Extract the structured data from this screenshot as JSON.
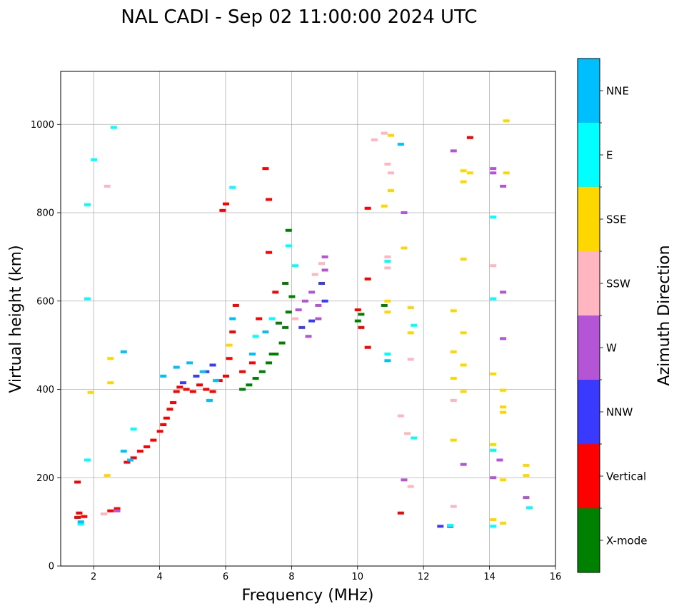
{
  "chart_data": {
    "type": "scatter",
    "title": "NAL CADI - Sep 02 11:00:00 2024 UTC",
    "xlabel": "Frequency (MHz)",
    "ylabel": "Virtual height (km)",
    "xlim": [
      1,
      16
    ],
    "ylim": [
      0,
      1120
    ],
    "xticks": [
      2,
      4,
      6,
      8,
      10,
      12,
      14,
      16
    ],
    "yticks": [
      0,
      200,
      400,
      600,
      800,
      1000
    ],
    "grid": true,
    "colorbar": {
      "label": "Azimuth Direction",
      "categories": [
        {
          "name": "X-mode",
          "color": "#008000"
        },
        {
          "name": "Vertical",
          "color": "#ff0000"
        },
        {
          "name": "NNW",
          "color": "#3a3aff"
        },
        {
          "name": "W",
          "color": "#b455d6"
        },
        {
          "name": "SSW",
          "color": "#ffb6c1"
        },
        {
          "name": "SSE",
          "color": "#ffd700"
        },
        {
          "name": "E",
          "color": "#00ffff"
        },
        {
          "name": "NNE",
          "color": "#00bfff"
        }
      ]
    },
    "series": [
      {
        "name": "Vertical",
        "points": [
          [
            1.5,
            110
          ],
          [
            1.55,
            120
          ],
          [
            1.5,
            190
          ],
          [
            1.7,
            112
          ],
          [
            2.3,
            118
          ],
          [
            2.5,
            125
          ],
          [
            2.7,
            130
          ],
          [
            3.0,
            235
          ],
          [
            3.2,
            245
          ],
          [
            3.4,
            260
          ],
          [
            3.6,
            270
          ],
          [
            3.8,
            285
          ],
          [
            4.0,
            305
          ],
          [
            4.1,
            320
          ],
          [
            4.2,
            335
          ],
          [
            4.3,
            355
          ],
          [
            4.4,
            370
          ],
          [
            4.5,
            395
          ],
          [
            4.6,
            405
          ],
          [
            4.8,
            400
          ],
          [
            5.0,
            395
          ],
          [
            5.2,
            410
          ],
          [
            5.4,
            400
          ],
          [
            5.6,
            395
          ],
          [
            5.8,
            420
          ],
          [
            6.0,
            430
          ],
          [
            6.1,
            470
          ],
          [
            6.2,
            530
          ],
          [
            6.3,
            590
          ],
          [
            6.5,
            440
          ],
          [
            6.8,
            460
          ],
          [
            7.0,
            560
          ],
          [
            7.2,
            900
          ],
          [
            7.3,
            830
          ],
          [
            7.3,
            710
          ],
          [
            7.5,
            620
          ],
          [
            5.9,
            805
          ],
          [
            6.0,
            820
          ],
          [
            10.0,
            580
          ],
          [
            10.1,
            540
          ],
          [
            10.3,
            810
          ],
          [
            10.3,
            650
          ],
          [
            10.3,
            495
          ],
          [
            13.4,
            970
          ],
          [
            11.3,
            120
          ]
        ]
      },
      {
        "name": "X-mode",
        "points": [
          [
            6.5,
            400
          ],
          [
            6.7,
            410
          ],
          [
            6.9,
            425
          ],
          [
            7.1,
            440
          ],
          [
            7.3,
            460
          ],
          [
            7.5,
            480
          ],
          [
            7.7,
            505
          ],
          [
            7.8,
            540
          ],
          [
            7.9,
            575
          ],
          [
            8.0,
            610
          ],
          [
            7.9,
            760
          ],
          [
            7.8,
            640
          ],
          [
            7.6,
            550
          ],
          [
            7.4,
            480
          ],
          [
            10.0,
            555
          ],
          [
            10.1,
            570
          ],
          [
            10.8,
            590
          ]
        ]
      },
      {
        "name": "NNW",
        "points": [
          [
            4.7,
            415
          ],
          [
            5.1,
            430
          ],
          [
            5.4,
            440
          ],
          [
            5.6,
            455
          ],
          [
            8.3,
            540
          ],
          [
            8.6,
            555
          ],
          [
            9.0,
            600
          ],
          [
            8.9,
            640
          ],
          [
            12.5,
            90
          ],
          [
            12.8,
            90
          ]
        ]
      },
      {
        "name": "W",
        "points": [
          [
            2.7,
            125
          ],
          [
            8.2,
            580
          ],
          [
            8.4,
            600
          ],
          [
            8.6,
            620
          ],
          [
            8.8,
            590
          ],
          [
            9.0,
            700
          ],
          [
            9.0,
            670
          ],
          [
            8.8,
            560
          ],
          [
            8.5,
            520
          ],
          [
            11.4,
            800
          ],
          [
            12.9,
            940
          ],
          [
            14.1,
            900
          ],
          [
            14.1,
            890
          ],
          [
            14.4,
            860
          ],
          [
            14.4,
            620
          ],
          [
            14.4,
            515
          ],
          [
            14.3,
            240
          ],
          [
            14.1,
            200
          ],
          [
            15.1,
            155
          ],
          [
            13.2,
            230
          ],
          [
            11.4,
            195
          ]
        ]
      },
      {
        "name": "SSW",
        "points": [
          [
            2.4,
            860
          ],
          [
            2.3,
            118
          ],
          [
            8.1,
            560
          ],
          [
            8.7,
            660
          ],
          [
            8.9,
            685
          ],
          [
            10.9,
            700
          ],
          [
            10.9,
            675
          ],
          [
            11.0,
            890
          ],
          [
            10.9,
            910
          ],
          [
            11.3,
            340
          ],
          [
            11.5,
            300
          ],
          [
            11.6,
            468
          ],
          [
            12.9,
            375
          ],
          [
            12.9,
            135
          ],
          [
            14.1,
            680
          ],
          [
            11.6,
            180
          ],
          [
            10.8,
            980
          ],
          [
            10.5,
            965
          ]
        ]
      },
      {
        "name": "SSE",
        "points": [
          [
            2.5,
            470
          ],
          [
            2.5,
            415
          ],
          [
            2.4,
            205
          ],
          [
            1.9,
            393
          ],
          [
            6.1,
            500
          ],
          [
            10.9,
            600
          ],
          [
            10.9,
            575
          ],
          [
            10.8,
            815
          ],
          [
            11.0,
            975
          ],
          [
            11.0,
            850
          ],
          [
            11.6,
            585
          ],
          [
            11.6,
            528
          ],
          [
            11.4,
            720
          ],
          [
            12.9,
            578
          ],
          [
            12.9,
            485
          ],
          [
            12.9,
            425
          ],
          [
            12.9,
            285
          ],
          [
            13.2,
            895
          ],
          [
            13.2,
            870
          ],
          [
            13.2,
            695
          ],
          [
            13.2,
            528
          ],
          [
            13.2,
            455
          ],
          [
            13.2,
            395
          ],
          [
            13.4,
            890
          ],
          [
            14.1,
            435
          ],
          [
            14.1,
            275
          ],
          [
            14.1,
            105
          ],
          [
            14.4,
            398
          ],
          [
            14.4,
            360
          ],
          [
            14.4,
            348
          ],
          [
            14.4,
            195
          ],
          [
            14.4,
            97
          ],
          [
            14.5,
            1008
          ],
          [
            14.5,
            890
          ],
          [
            15.1,
            228
          ],
          [
            15.1,
            205
          ]
        ]
      },
      {
        "name": "E",
        "points": [
          [
            1.6,
            95
          ],
          [
            1.8,
            818
          ],
          [
            1.8,
            605
          ],
          [
            1.8,
            240
          ],
          [
            2.0,
            920
          ],
          [
            2.6,
            993
          ],
          [
            3.2,
            310
          ],
          [
            6.2,
            857
          ],
          [
            6.9,
            520
          ],
          [
            7.4,
            560
          ],
          [
            7.9,
            725
          ],
          [
            8.1,
            680
          ],
          [
            10.9,
            690
          ],
          [
            10.9,
            480
          ],
          [
            11.7,
            545
          ],
          [
            11.7,
            290
          ],
          [
            14.1,
            790
          ],
          [
            14.1,
            605
          ],
          [
            14.1,
            262
          ],
          [
            14.1,
            90
          ],
          [
            15.2,
            132
          ],
          [
            12.8,
            92
          ]
        ]
      },
      {
        "name": "NNE",
        "points": [
          [
            1.6,
            100
          ],
          [
            2.9,
            485
          ],
          [
            2.9,
            260
          ],
          [
            3.1,
            240
          ],
          [
            4.1,
            430
          ],
          [
            4.5,
            450
          ],
          [
            4.9,
            460
          ],
          [
            5.3,
            440
          ],
          [
            5.7,
            420
          ],
          [
            5.5,
            375
          ],
          [
            6.2,
            560
          ],
          [
            6.8,
            480
          ],
          [
            7.2,
            530
          ],
          [
            11.3,
            955
          ],
          [
            10.9,
            465
          ]
        ]
      }
    ]
  }
}
